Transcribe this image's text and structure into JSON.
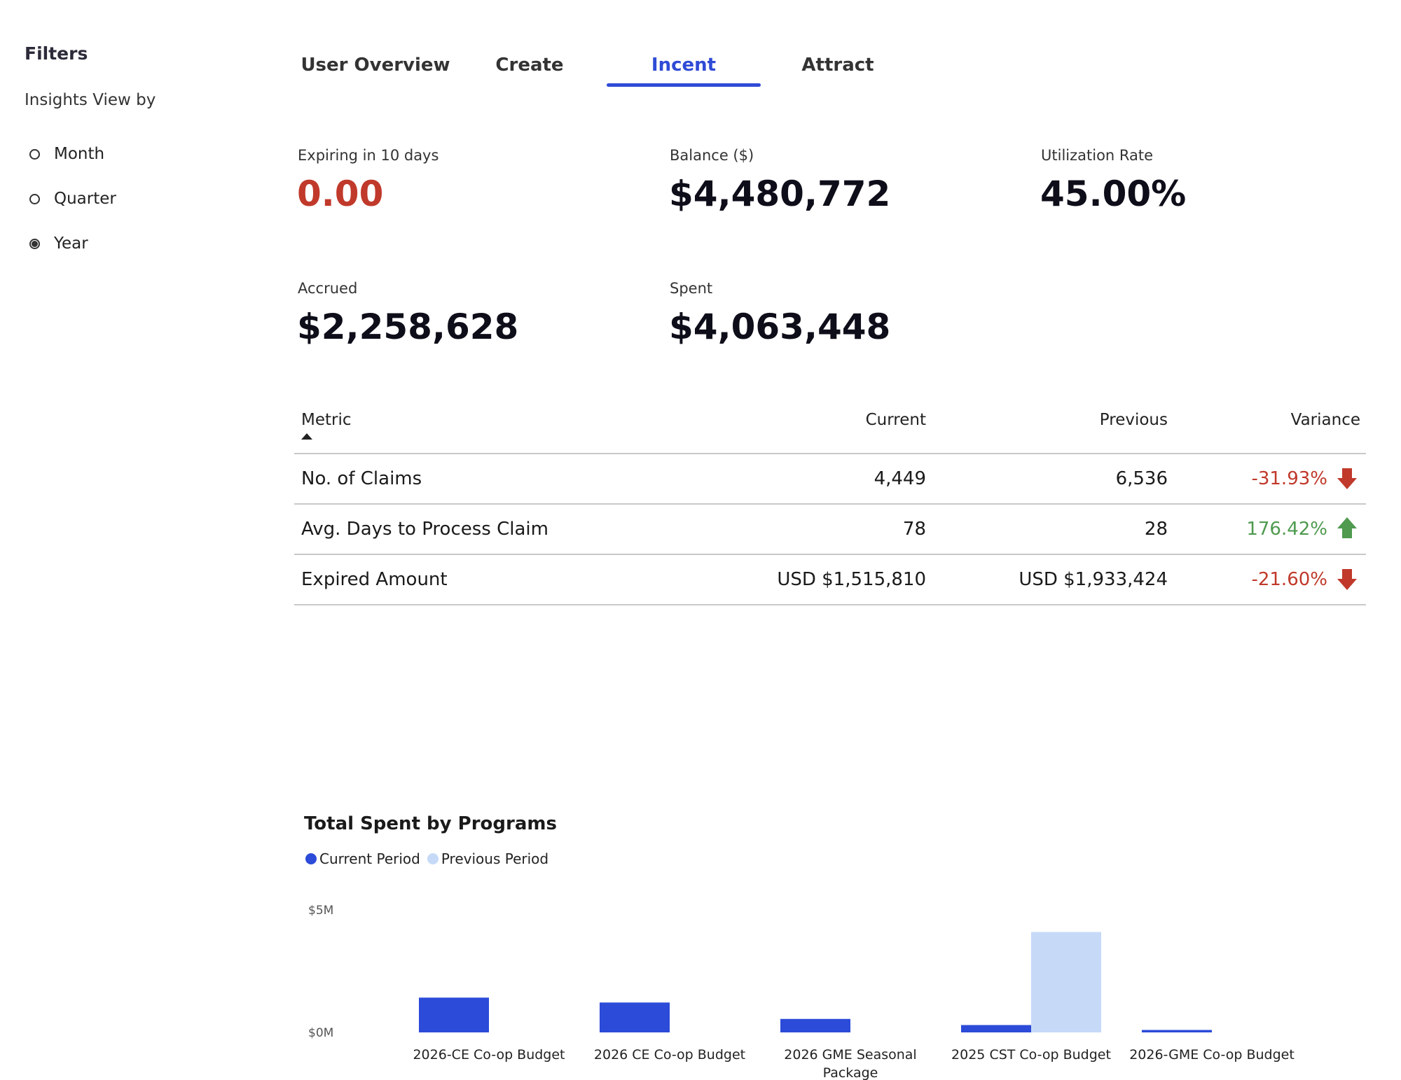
{
  "sidebar": {
    "title": "Filters",
    "view_by_label": "Insights View by",
    "options": [
      {
        "label": "Month",
        "selected": false
      },
      {
        "label": "Quarter",
        "selected": false
      },
      {
        "label": "Year",
        "selected": true
      }
    ]
  },
  "tabs": [
    {
      "label": "User Overview",
      "active": false
    },
    {
      "label": "Create",
      "active": false
    },
    {
      "label": "Incent",
      "active": true
    },
    {
      "label": "Attract",
      "active": false
    }
  ],
  "kpis": {
    "expiring": {
      "label": "Expiring in 10 days",
      "value": "0.00"
    },
    "balance": {
      "label": "Balance ($)",
      "value": "$4,480,772"
    },
    "utilization": {
      "label": "Utilization Rate",
      "value": "45.00%"
    },
    "accrued": {
      "label": "Accrued",
      "value": "$2,258,628"
    },
    "spent": {
      "label": "Spent",
      "value": "$4,063,448"
    }
  },
  "table": {
    "headers": {
      "metric": "Metric",
      "current": "Current",
      "previous": "Previous",
      "variance": "Variance"
    },
    "rows": [
      {
        "metric": "No. of Claims",
        "current": "4,449",
        "previous": "6,536",
        "variance": "-31.93%",
        "direction": "down"
      },
      {
        "metric": "Avg. Days to Process Claim",
        "current": "78",
        "previous": "28",
        "variance": "176.42%",
        "direction": "up"
      },
      {
        "metric": "Expired Amount",
        "current": "USD $1,515,810",
        "previous": "USD $1,933,424",
        "variance": "-21.60%",
        "direction": "down"
      }
    ]
  },
  "colors": {
    "accent": "#2f4bd6",
    "current_series": "#2b4bd8",
    "previous_series": "#c6daf8",
    "negative": "#c0392b",
    "positive": "#4f9a4f"
  },
  "chart_data": {
    "type": "bar",
    "title": "Total Spent by Programs",
    "categories": [
      "2026-CE Co-op Budget",
      "2026 CE Co-op Budget",
      "2026 GME Seasonal Package",
      "2025 CST Co-op Budget",
      "2026-GME Co-op Budget"
    ],
    "category_lines": [
      [
        "2026-CE Co-op Budget"
      ],
      [
        "2026 CE Co-op Budget"
      ],
      [
        "2026 GME Seasonal",
        "Package"
      ],
      [
        "2025 CST Co-op Budget"
      ],
      [
        "2026-GME Co-op Budget"
      ]
    ],
    "series": [
      {
        "name": "Current Period",
        "values": [
          1.42,
          1.22,
          0.55,
          0.3,
          0.1
        ]
      },
      {
        "name": "Previous Period",
        "values": [
          0,
          0,
          0,
          4.1,
          0
        ]
      }
    ],
    "ylim": [
      0,
      5
    ],
    "yticks": [
      {
        "value": 0,
        "label": "$0M"
      },
      {
        "value": 5,
        "label": "$5M"
      }
    ],
    "legend_position": "top-left",
    "grid": false
  }
}
